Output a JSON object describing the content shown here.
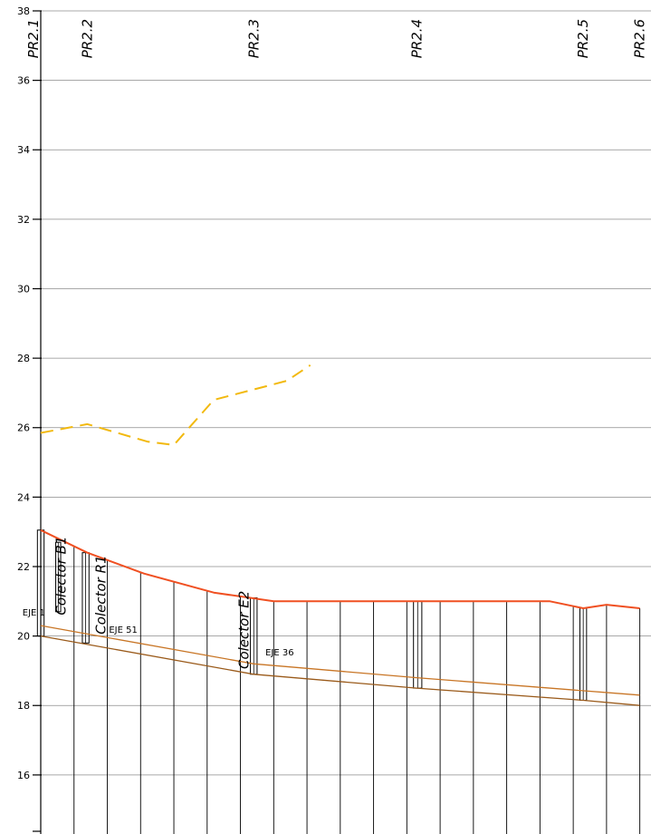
{
  "chart_data": {
    "type": "line",
    "y_axis": {
      "min": 14.3,
      "max": 38,
      "ticks": [
        16,
        18,
        20,
        22,
        24,
        26,
        28,
        30,
        32,
        34,
        36,
        38
      ],
      "tick_labels": [
        "16",
        "18",
        "20",
        "22",
        "24",
        "26",
        "28",
        "30",
        "32",
        "34",
        "36",
        "38"
      ],
      "grid": true
    },
    "stations": [
      {
        "label": "PR2.1",
        "x": 0
      },
      {
        "label": "PR2.2",
        "x": 1.4
      },
      {
        "label": "PR2.3",
        "x": 6.4
      },
      {
        "label": "PR2.4",
        "x": 11.3
      },
      {
        "label": "PR2.5",
        "x": 16.3
      },
      {
        "label": "PR2.6",
        "x": 18
      }
    ],
    "x_range": [
      -0.2,
      18.2
    ],
    "series": [
      {
        "key": "dashed-yellow",
        "color": "#f2b90f",
        "points": [
          [
            0,
            25.85
          ],
          [
            1.4,
            26.1
          ],
          [
            3.2,
            25.6
          ],
          [
            4.0,
            25.5
          ],
          [
            5.2,
            26.8
          ],
          [
            6.8,
            27.2
          ],
          [
            7.4,
            27.35
          ],
          [
            8.1,
            27.8
          ]
        ]
      },
      {
        "key": "surface-red",
        "color": "#f05022",
        "points": [
          [
            0,
            23.05
          ],
          [
            1.4,
            22.4
          ],
          [
            3.1,
            21.8
          ],
          [
            5.2,
            21.25
          ],
          [
            7.0,
            21.0
          ],
          [
            10.5,
            21.0
          ],
          [
            15.3,
            21.0
          ],
          [
            16.3,
            20.8
          ],
          [
            17.0,
            20.9
          ],
          [
            18.0,
            20.8
          ]
        ]
      },
      {
        "key": "upper-brown",
        "color": "#c87525",
        "points": [
          [
            0,
            20.3
          ],
          [
            6.4,
            19.2
          ],
          [
            11.3,
            18.8
          ],
          [
            18.0,
            18.3
          ]
        ]
      },
      {
        "key": "lower-brown",
        "color": "#9a5a1a",
        "points": [
          [
            0,
            20.0
          ],
          [
            6.4,
            18.9
          ],
          [
            11.3,
            18.5
          ],
          [
            16.3,
            18.15
          ],
          [
            18.0,
            18.0
          ]
        ]
      }
    ],
    "vertical_lines_x": [
      1.0,
      2.0,
      3.0,
      4.0,
      5.0,
      6.0,
      7.0,
      8.0,
      9.0,
      10.0,
      11.0,
      12.0,
      13.0,
      14.0,
      15.0,
      16.0,
      17.0,
      18.0
    ],
    "structures": [
      {
        "x0": -0.1,
        "x1": 0.1,
        "y0": 20.0,
        "y1": 23.05
      },
      {
        "x0": 0.45,
        "x1": 0.6,
        "y0": 20.7,
        "y1": 22.7
      },
      {
        "x0": 1.25,
        "x1": 1.45,
        "y0": 19.8,
        "y1": 22.4
      },
      {
        "x0": 6.3,
        "x1": 6.5,
        "y0": 18.9,
        "y1": 21.1
      },
      {
        "x0": 11.2,
        "x1": 11.45,
        "y0": 18.5,
        "y1": 21.0
      },
      {
        "x0": 16.2,
        "x1": 16.4,
        "y0": 18.15,
        "y1": 20.8
      }
    ],
    "annotations": [
      {
        "text": "Colector B1",
        "x": 0.75,
        "y": 20.6,
        "rotate": -90
      },
      {
        "text": "Colector R1",
        "x": 1.95,
        "y": 20.05,
        "rotate": -90
      },
      {
        "text": "Colector E2",
        "x": 6.25,
        "y": 19.05,
        "rotate": -90
      },
      {
        "text": "EJE 1",
        "x": -0.55,
        "y": 20.7,
        "rotate": 0
      },
      {
        "text": "EJE 51",
        "x": 2.05,
        "y": 20.2,
        "rotate": 0
      },
      {
        "text": "EJE 36",
        "x": 6.75,
        "y": 19.55,
        "rotate": 0
      }
    ]
  }
}
